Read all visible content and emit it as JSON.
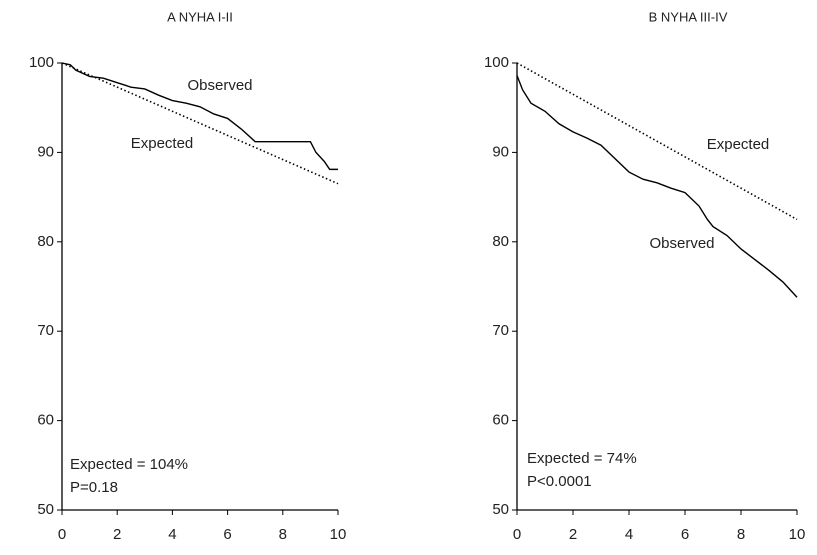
{
  "chart_data": [
    {
      "type": "line",
      "title": "A NYHA I-II",
      "xlim": [
        0,
        10
      ],
      "ylim": [
        50,
        100
      ],
      "xticks": [
        0,
        2,
        4,
        6,
        8,
        10
      ],
      "yticks": [
        50,
        60,
        70,
        80,
        90,
        100
      ],
      "series": [
        {
          "name": "Observed",
          "color": "#000000",
          "style": "solid",
          "x": [
            0,
            0.3,
            0.5,
            1,
            1.5,
            2,
            2.5,
            3,
            3.5,
            4,
            4.5,
            5,
            5.5,
            6,
            6.5,
            7,
            8,
            9,
            9.2,
            9.5,
            9.7,
            10
          ],
          "values": [
            100,
            99.8,
            99.2,
            98.5,
            98.3,
            97.8,
            97.3,
            97.1,
            96.4,
            95.8,
            95.5,
            95.1,
            94.3,
            93.8,
            92.6,
            91.2,
            91.2,
            91.2,
            90.0,
            89.0,
            88.1,
            88.1
          ]
        },
        {
          "name": "Expected",
          "color": "#000000",
          "style": "dotted",
          "x": [
            0,
            10
          ],
          "values": [
            100,
            86.5
          ]
        }
      ],
      "annotations": [
        "Expected = 104%",
        "P=0.18"
      ]
    },
    {
      "type": "line",
      "title": "B NYHA III-IV",
      "xlim": [
        0,
        10
      ],
      "ylim": [
        50,
        100
      ],
      "xticks": [
        0,
        2,
        4,
        6,
        8,
        10
      ],
      "yticks": [
        50,
        60,
        70,
        80,
        90,
        100
      ],
      "series": [
        {
          "name": "Expected",
          "color": "#000000",
          "style": "dotted",
          "x": [
            0,
            10
          ],
          "values": [
            100,
            82.5
          ]
        },
        {
          "name": "Observed",
          "color": "#000000",
          "style": "solid",
          "x": [
            0,
            0.2,
            0.5,
            1,
            1.5,
            2,
            2.5,
            3,
            3.5,
            4,
            4.5,
            5,
            5.5,
            6,
            6.5,
            6.8,
            7,
            7.5,
            8,
            8.5,
            9,
            9.5,
            10
          ],
          "values": [
            98.6,
            97,
            95.5,
            94.6,
            93.2,
            92.3,
            91.6,
            90.8,
            89.3,
            87.8,
            87.0,
            86.6,
            86.0,
            85.5,
            84.0,
            82.5,
            81.7,
            80.7,
            79.2,
            78.0,
            76.8,
            75.5,
            73.8
          ]
        }
      ],
      "annotations": [
        "Expected = 74%",
        "P<0.0001"
      ]
    }
  ]
}
